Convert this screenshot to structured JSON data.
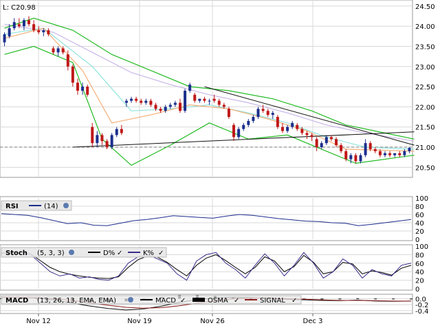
{
  "last_price_label": "L: C20.98",
  "colors": {
    "up": "#1c2f8c",
    "down": "#c01818",
    "bollinger": "#22bb22",
    "ma_fast": "#f4b07a",
    "ma_mid": "#8fe3dc",
    "ma_slow": "#c8b6e8",
    "rsi": "#1c2c8c",
    "stoch_d": "#000000",
    "stoch_k": "#3c2c8c",
    "macd": "#111111",
    "signal": "#8b1a1a",
    "osma": "#000000",
    "grid": "#d8d8d8"
  },
  "x_tick_labels": [
    "Nov 12",
    "Nov 19",
    "Nov 26",
    "Dec 3"
  ],
  "price_axis_ticks": [
    "24.50",
    "24.00",
    "23.50",
    "23.00",
    "22.50",
    "22.00",
    "21.50",
    "21.00",
    "20.50"
  ],
  "rsi_panel": {
    "name": "RSI",
    "params": "(14)",
    "ticks": [
      "100",
      "80",
      "60",
      "40",
      "20",
      "0"
    ]
  },
  "stoch_panel": {
    "name": "Stoch",
    "params": "(5, 3, 3)",
    "d_label": "D%",
    "k_label": "K%",
    "ticks": [
      "100",
      "80",
      "60",
      "40",
      "20",
      "0"
    ]
  },
  "macd_panel": {
    "name": "MACD",
    "params": "(13, 26, 13, EMA, EMA)",
    "macd_label": "MACD",
    "osma_label": "OSMA",
    "signal_label": "SIGNAL",
    "ticks": [
      "0.0",
      "-0.2",
      "-0.4"
    ]
  },
  "chart_data": [
    {
      "type": "candlestick",
      "title": "",
      "last_value": 20.98,
      "ylim": [
        20.25,
        24.65
      ],
      "dashed_reference_line": 21.0,
      "x_categories": [
        "Nov 12",
        "Nov 19",
        "Nov 26",
        "Dec 3"
      ],
      "candles_ohlc": [
        [
          23.6,
          23.85,
          23.5,
          23.8
        ],
        [
          23.75,
          24.05,
          23.7,
          23.95
        ],
        [
          23.95,
          24.2,
          23.9,
          24.1
        ],
        [
          24.05,
          24.2,
          23.95,
          24.0
        ],
        [
          24.0,
          24.2,
          23.9,
          24.15
        ],
        [
          24.15,
          24.25,
          24.0,
          24.05
        ],
        [
          24.05,
          24.15,
          23.85,
          23.9
        ],
        [
          23.9,
          24.0,
          23.8,
          23.85
        ],
        [
          23.85,
          23.95,
          23.75,
          23.9
        ],
        [
          23.9,
          23.95,
          23.75,
          23.8
        ],
        [
          23.45,
          23.5,
          23.3,
          23.35
        ],
        [
          23.35,
          23.5,
          23.25,
          23.45
        ],
        [
          23.45,
          23.5,
          23.3,
          23.35
        ],
        [
          23.3,
          23.4,
          22.9,
          23.0
        ],
        [
          23.0,
          23.05,
          22.5,
          22.6
        ],
        [
          22.6,
          22.7,
          22.3,
          22.4
        ],
        [
          22.4,
          22.6,
          22.3,
          22.5
        ],
        [
          22.5,
          22.55,
          22.25,
          22.3
        ],
        [
          21.5,
          21.6,
          21.0,
          21.1
        ],
        [
          21.1,
          21.4,
          21.0,
          21.3
        ],
        [
          21.3,
          21.35,
          21.05,
          21.15
        ],
        [
          21.15,
          21.2,
          20.95,
          21.0
        ],
        [
          21.0,
          21.35,
          20.95,
          21.3
        ],
        [
          21.3,
          21.5,
          21.25,
          21.45
        ],
        [
          21.45,
          21.55,
          21.3,
          21.35
        ],
        [
          22.1,
          22.2,
          22.0,
          22.15
        ],
        [
          22.15,
          22.25,
          22.1,
          22.2
        ],
        [
          22.2,
          22.25,
          22.1,
          22.15
        ],
        [
          22.15,
          22.2,
          22.05,
          22.1
        ],
        [
          22.1,
          22.2,
          22.05,
          22.15
        ],
        [
          22.15,
          22.2,
          22.0,
          22.05
        ],
        [
          22.05,
          22.1,
          21.9,
          21.95
        ],
        [
          21.95,
          22.0,
          21.85,
          21.9
        ],
        [
          21.9,
          22.05,
          21.85,
          22.0
        ],
        [
          22.0,
          22.1,
          21.95,
          22.05
        ],
        [
          22.05,
          22.15,
          22.0,
          22.1
        ],
        [
          22.1,
          22.2,
          21.85,
          21.9
        ],
        [
          21.9,
          22.45,
          21.85,
          22.4
        ],
        [
          22.4,
          22.6,
          22.35,
          22.55
        ],
        [
          22.3,
          22.35,
          22.1,
          22.15
        ],
        [
          22.15,
          22.2,
          22.1,
          22.2
        ],
        [
          22.2,
          22.25,
          22.1,
          22.15
        ],
        [
          22.15,
          22.2,
          22.05,
          22.15
        ],
        [
          22.2,
          22.3,
          22.1,
          22.15
        ],
        [
          22.15,
          22.2,
          22.0,
          22.05
        ],
        [
          22.05,
          22.1,
          21.95,
          22.0
        ],
        [
          21.95,
          22.0,
          21.7,
          21.75
        ],
        [
          21.55,
          21.6,
          21.15,
          21.25
        ],
        [
          21.25,
          21.5,
          21.2,
          21.45
        ],
        [
          21.45,
          21.6,
          21.4,
          21.55
        ],
        [
          21.55,
          21.7,
          21.5,
          21.65
        ],
        [
          21.65,
          21.8,
          21.6,
          21.75
        ],
        [
          21.75,
          22.0,
          21.7,
          21.95
        ],
        [
          21.95,
          22.05,
          21.85,
          21.9
        ],
        [
          21.9,
          21.95,
          21.75,
          21.8
        ],
        [
          21.8,
          21.9,
          21.7,
          21.85
        ],
        [
          21.75,
          21.8,
          21.45,
          21.5
        ],
        [
          21.5,
          21.6,
          21.35,
          21.4
        ],
        [
          21.4,
          21.55,
          21.35,
          21.5
        ],
        [
          21.5,
          21.65,
          21.45,
          21.6
        ],
        [
          21.55,
          21.6,
          21.4,
          21.45
        ],
        [
          21.45,
          21.5,
          21.3,
          21.35
        ],
        [
          21.35,
          21.4,
          21.2,
          21.3
        ],
        [
          21.3,
          21.35,
          21.15,
          21.25
        ],
        [
          21.2,
          21.25,
          20.9,
          21.0
        ],
        [
          21.0,
          21.15,
          20.95,
          21.1
        ],
        [
          21.1,
          21.3,
          21.05,
          21.25
        ],
        [
          21.25,
          21.3,
          21.15,
          21.2
        ],
        [
          21.2,
          21.25,
          21.0,
          21.05
        ],
        [
          21.05,
          21.1,
          20.85,
          20.9
        ],
        [
          20.9,
          20.95,
          20.65,
          20.7
        ],
        [
          20.7,
          20.85,
          20.6,
          20.8
        ],
        [
          20.8,
          20.85,
          20.6,
          20.65
        ],
        [
          20.65,
          20.85,
          20.6,
          20.8
        ],
        [
          20.8,
          21.2,
          20.75,
          21.1
        ],
        [
          21.1,
          21.15,
          20.9,
          20.95
        ],
        [
          20.95,
          21.0,
          20.85,
          20.9
        ],
        [
          20.9,
          20.95,
          20.75,
          20.8
        ],
        [
          20.8,
          20.9,
          20.75,
          20.85
        ],
        [
          20.85,
          20.9,
          20.75,
          20.8
        ],
        [
          20.8,
          20.85,
          20.75,
          20.85
        ],
        [
          20.85,
          20.9,
          20.75,
          20.8
        ],
        [
          20.8,
          20.95,
          20.75,
          20.9
        ],
        [
          20.9,
          21.0,
          20.85,
          20.98
        ]
      ],
      "bollinger_upper": [
        [
          0,
          23.95
        ],
        [
          6,
          24.2
        ],
        [
          14,
          23.9
        ],
        [
          22,
          23.3
        ],
        [
          30,
          22.9
        ],
        [
          38,
          22.5
        ],
        [
          46,
          22.4
        ],
        [
          55,
          22.2
        ],
        [
          63,
          21.9
        ],
        [
          70,
          21.55
        ],
        [
          78,
          21.35
        ],
        [
          84,
          21.2
        ]
      ],
      "bollinger_lower": [
        [
          0,
          23.3
        ],
        [
          6,
          23.5
        ],
        [
          14,
          23.1
        ],
        [
          20,
          21.2
        ],
        [
          26,
          20.55
        ],
        [
          34,
          21.05
        ],
        [
          42,
          21.6
        ],
        [
          50,
          21.2
        ],
        [
          58,
          21.3
        ],
        [
          66,
          20.9
        ],
        [
          72,
          20.6
        ],
        [
          84,
          20.8
        ]
      ],
      "ma_fast": [
        [
          0,
          23.7
        ],
        [
          8,
          23.95
        ],
        [
          16,
          22.9
        ],
        [
          22,
          21.6
        ],
        [
          30,
          21.8
        ],
        [
          38,
          22.05
        ],
        [
          46,
          21.95
        ],
        [
          54,
          21.7
        ],
        [
          62,
          21.4
        ],
        [
          70,
          20.95
        ],
        [
          84,
          20.9
        ]
      ],
      "ma_mid": [
        [
          0,
          23.8
        ],
        [
          8,
          23.95
        ],
        [
          18,
          23.0
        ],
        [
          26,
          21.9
        ],
        [
          34,
          21.95
        ],
        [
          42,
          22.05
        ],
        [
          50,
          21.85
        ],
        [
          58,
          21.6
        ],
        [
          66,
          21.25
        ],
        [
          74,
          21.0
        ],
        [
          84,
          20.95
        ]
      ],
      "ma_slow": [
        [
          0,
          24.05
        ],
        [
          10,
          23.85
        ],
        [
          18,
          23.35
        ],
        [
          26,
          22.85
        ],
        [
          34,
          22.55
        ],
        [
          42,
          22.3
        ],
        [
          50,
          22.1
        ],
        [
          58,
          21.85
        ],
        [
          66,
          21.55
        ],
        [
          74,
          21.35
        ],
        [
          84,
          21.15
        ]
      ],
      "trend_lines": [
        [
          [
            14,
            21.0
          ],
          [
            84,
            21.38
          ]
        ],
        [
          [
            41,
            22.5
          ],
          [
            84,
            21.05
          ]
        ]
      ],
      "rsi": [
        62,
        60,
        58,
        52,
        45,
        38,
        40,
        34,
        33,
        39,
        45,
        48,
        52,
        57,
        55,
        53,
        51,
        56,
        60,
        58,
        54,
        50,
        47,
        44,
        43,
        40,
        39,
        33,
        36,
        40,
        44,
        48
      ],
      "stoch_k": [
        85,
        82,
        88,
        80,
        60,
        40,
        30,
        35,
        25,
        28,
        22,
        20,
        30,
        60,
        75,
        80,
        70,
        60,
        35,
        20,
        65,
        80,
        85,
        60,
        45,
        25,
        55,
        82,
        60,
        30,
        55,
        85,
        60,
        25,
        40,
        70,
        55,
        25,
        45,
        35,
        30,
        55,
        60
      ],
      "stoch_d": [
        83,
        84,
        86,
        82,
        66,
        50,
        40,
        34,
        30,
        27,
        25,
        24,
        28,
        50,
        68,
        77,
        74,
        62,
        45,
        30,
        55,
        72,
        80,
        66,
        50,
        35,
        50,
        75,
        65,
        40,
        52,
        78,
        62,
        35,
        40,
        62,
        58,
        35,
        42,
        38,
        32,
        48,
        55
      ],
      "macd": [
        0.05,
        0.04,
        0.02,
        -0.05,
        -0.15,
        -0.25,
        -0.33,
        -0.38,
        -0.34,
        -0.25,
        -0.12,
        -0.03,
        0.02,
        0.04,
        0.03,
        0.01,
        -0.02,
        -0.04,
        -0.06,
        -0.07,
        -0.05,
        -0.08,
        -0.09,
        -0.08
      ],
      "signal": [
        0.04,
        0.04,
        0.03,
        0.0,
        -0.06,
        -0.14,
        -0.22,
        -0.29,
        -0.32,
        -0.3,
        -0.24,
        -0.15,
        -0.07,
        -0.01,
        0.02,
        0.02,
        0.0,
        -0.02,
        -0.04,
        -0.06,
        -0.06,
        -0.07,
        -0.08,
        -0.08
      ],
      "osma": [
        0.01,
        0.0,
        -0.01,
        -0.05,
        -0.09,
        -0.11,
        -0.11,
        -0.09,
        -0.02,
        0.05,
        0.12,
        0.12,
        0.09,
        0.05,
        0.01,
        -0.01,
        -0.02,
        -0.02,
        -0.02,
        -0.01,
        0.01,
        -0.01,
        -0.01,
        0.0
      ]
    }
  ]
}
